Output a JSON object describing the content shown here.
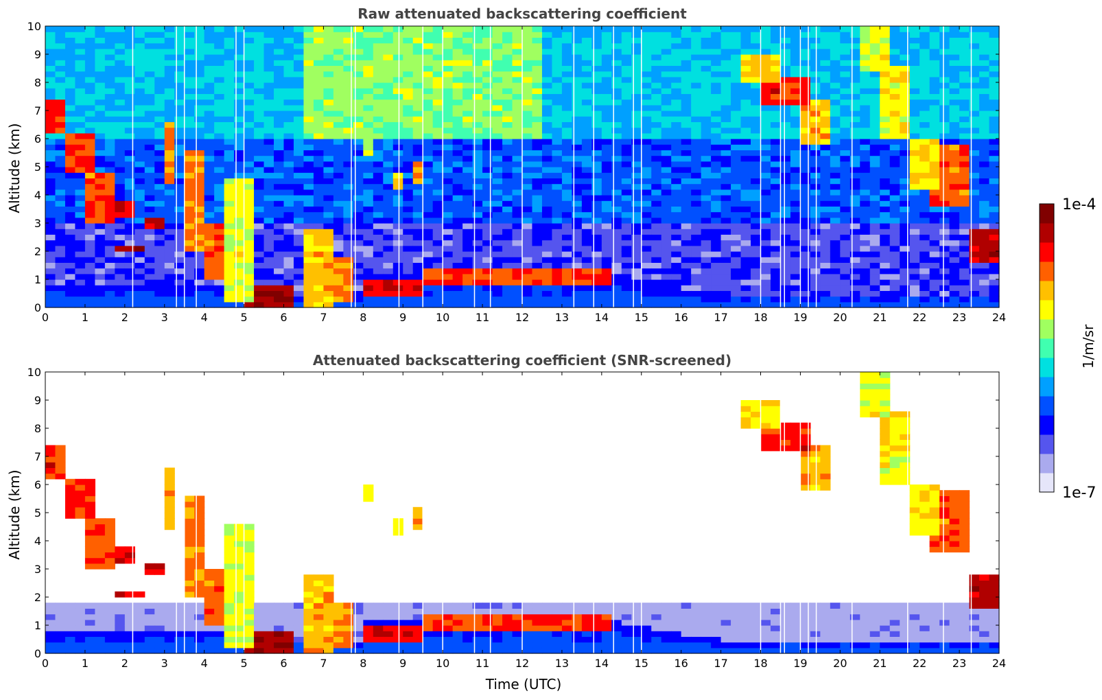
{
  "chart_data": [
    {
      "type": "heatmap",
      "title": "Raw attenuated backscattering coefficient",
      "xlabel": "",
      "ylabel": "Altitude (km)",
      "xlim": [
        0,
        24
      ],
      "ylim": [
        0,
        10
      ],
      "xticks": [
        "0",
        "1",
        "2",
        "3",
        "4",
        "5",
        "6",
        "7",
        "8",
        "9",
        "10",
        "11",
        "12",
        "13",
        "14",
        "15",
        "16",
        "17",
        "18",
        "19",
        "20",
        "21",
        "22",
        "23",
        "24"
      ],
      "yticks": [
        "0",
        "1",
        "2",
        "3",
        "4",
        "5",
        "6",
        "7",
        "8",
        "9",
        "10"
      ],
      "grid": false,
      "screened": false
    },
    {
      "type": "heatmap",
      "title": "Attenuated backscattering coefficient (SNR-screened)",
      "xlabel": "Time (UTC)",
      "ylabel": "Altitude (km)",
      "xlim": [
        0,
        24
      ],
      "ylim": [
        0,
        10
      ],
      "xticks": [
        "0",
        "1",
        "2",
        "3",
        "4",
        "5",
        "6",
        "7",
        "8",
        "9",
        "10",
        "11",
        "12",
        "13",
        "14",
        "15",
        "16",
        "17",
        "18",
        "19",
        "20",
        "21",
        "22",
        "23",
        "24"
      ],
      "yticks": [
        "0",
        "1",
        "2",
        "3",
        "4",
        "5",
        "6",
        "7",
        "8",
        "9",
        "10"
      ],
      "grid": false,
      "screened": true
    }
  ],
  "colorbar": {
    "label": "1/m/sr",
    "max_label": "1e-4",
    "min_label": "1e-7",
    "colormap": [
      "#e6e6fa",
      "#aaaaee",
      "#5555ee",
      "#0000ff",
      "#0050ff",
      "#00a0ff",
      "#00e0e0",
      "#40ffb0",
      "#a0ff60",
      "#ffff00",
      "#ffc000",
      "#ff6000",
      "#ff0000",
      "#b00000",
      "#800000"
    ]
  }
}
